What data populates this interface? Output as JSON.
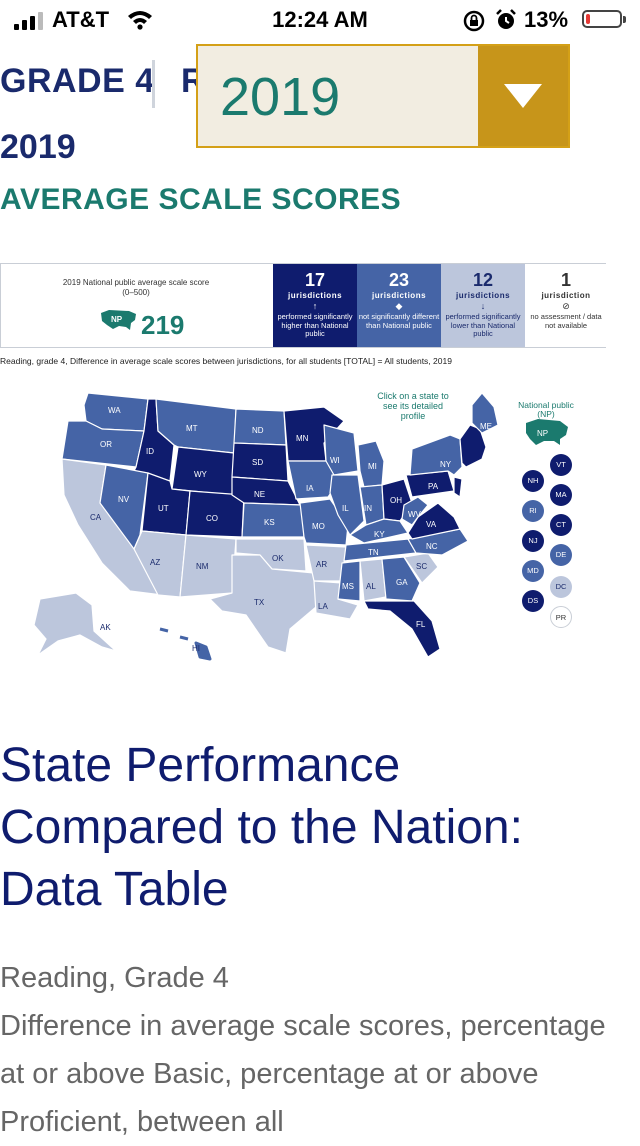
{
  "status_bar": {
    "carrier": "AT&T",
    "time": "12:24 AM",
    "battery_percent": "13%",
    "battery_level": 0.13,
    "signal_bars": 3
  },
  "header": {
    "grade": "GRADE 4",
    "subject_partial": "R",
    "year": "2019",
    "section": "AVERAGE SCALE SCORES"
  },
  "year_select": {
    "value": "2019"
  },
  "summary": {
    "national_label": "2019 National public average scale score (0–500)",
    "national_badge": "NP",
    "national_score": "219",
    "categories": [
      {
        "count": "17",
        "unit": "jurisdictions",
        "symbol": "↑",
        "desc": "performed significantly higher than National public"
      },
      {
        "count": "23",
        "unit": "jurisdictions",
        "symbol": "◆",
        "desc": "not significantly different than National public"
      },
      {
        "count": "12",
        "unit": "jurisdictions",
        "symbol": "↓",
        "desc": "performed significantly lower than National public"
      },
      {
        "count": "1",
        "unit": "jurisdiction",
        "symbol": "⊘",
        "desc": "no assessment / data not available"
      }
    ]
  },
  "caption": "Reading, grade 4, Difference in average scale scores between jurisdictions, for all students [TOTAL] = All students, 2019",
  "map": {
    "note": "Click on a state to see its detailed profile",
    "national_label": "National public (NP)",
    "np": "NP",
    "colors": {
      "higher": "#0f1c6e",
      "same": "#4564a6",
      "lower": "#bcc6dc"
    },
    "labels": {
      "WA": "WA",
      "OR": "OR",
      "CA": "CA",
      "ID": "ID",
      "NV": "NV",
      "MT": "MT",
      "WY": "WY",
      "UT": "UT",
      "AZ": "AZ",
      "CO": "CO",
      "NM": "NM",
      "ND": "ND",
      "SD": "SD",
      "NE": "NE",
      "KS": "KS",
      "OK": "OK",
      "TX": "TX",
      "MN": "MN",
      "IA": "IA",
      "MO": "MO",
      "AR": "AR",
      "LA": "LA",
      "WI": "WI",
      "IL": "IL",
      "MI": "MI",
      "IN": "IN",
      "OH": "OH",
      "KY": "KY",
      "TN": "TN",
      "MS": "MS",
      "AL": "AL",
      "GA": "GA",
      "FL": "FL",
      "SC": "SC",
      "NC": "NC",
      "VA": "VA",
      "WV": "WV",
      "PA": "PA",
      "NY": "NY",
      "ME": "ME",
      "AK": "AK",
      "HI": "HI"
    },
    "small_states": [
      {
        "label": "VT",
        "status": "higher"
      },
      {
        "label": "NH",
        "status": "higher"
      },
      {
        "label": "MA",
        "status": "higher"
      },
      {
        "label": "RI",
        "status": "same"
      },
      {
        "label": "CT",
        "status": "higher"
      },
      {
        "label": "NJ",
        "status": "higher"
      },
      {
        "label": "DE",
        "status": "same"
      },
      {
        "label": "MD",
        "status": "same"
      },
      {
        "label": "DC",
        "status": "lower"
      },
      {
        "label": "DS",
        "status": "higher"
      },
      {
        "label": "PR",
        "status": "none"
      }
    ]
  },
  "data_table": {
    "title": "State Performance Compared to the Nation: Data Table",
    "subject": "Reading, Grade 4",
    "description": "Difference in average scale scores, percentage at or above Basic, percentage at or above Proficient, between all"
  }
}
